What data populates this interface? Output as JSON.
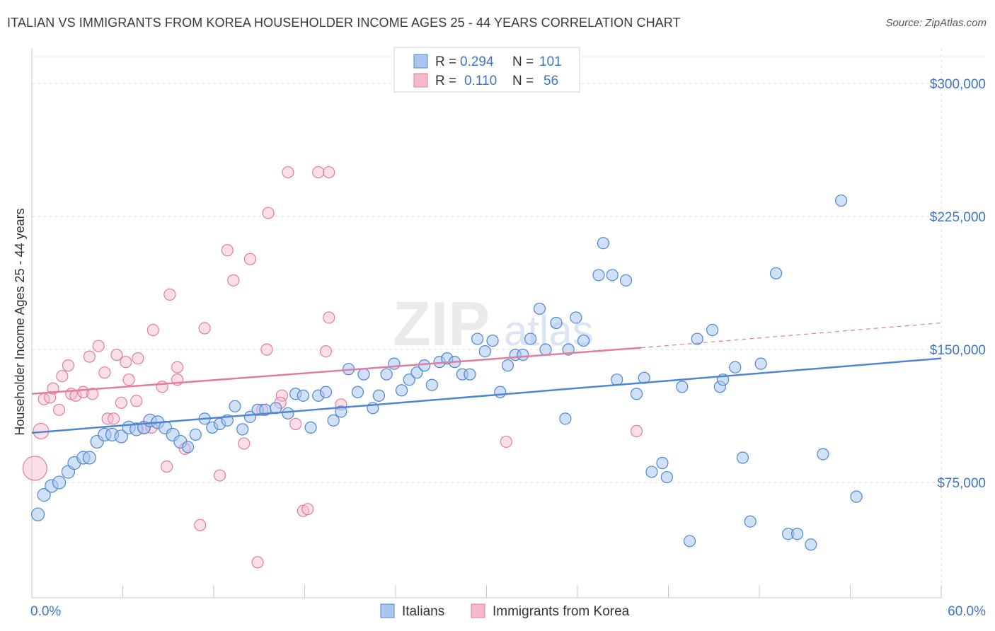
{
  "title": "ITALIAN VS IMMIGRANTS FROM KOREA HOUSEHOLDER INCOME AGES 25 - 44 YEARS CORRELATION CHART",
  "source": "Source: ZipAtlas.com",
  "watermark": {
    "zip": "ZIP",
    "atlas": "atlas"
  },
  "legend": [
    {
      "r_label": "R =",
      "r": "0.294",
      "n_label": "N =",
      "n": "101"
    },
    {
      "r_label": "R =",
      "r": "0.110",
      "n_label": "N =",
      "n": "56"
    }
  ],
  "colors": {
    "italians": "#4f86cf",
    "korea": "#e07da0"
  },
  "chart_data": {
    "type": "scatter",
    "title": "ITALIAN VS IMMIGRANTS FROM KOREA HOUSEHOLDER INCOME AGES 25 - 44 YEARS CORRELATION CHART",
    "xlabel": "",
    "ylabel": "Householder Income Ages 25 - 44 years",
    "xlim": [
      0,
      60
    ],
    "ylim": [
      10000,
      320000
    ],
    "x_tick_labels": {
      "left": "0.0%",
      "right": "60.0%"
    },
    "y_ticks": [
      {
        "value": 75000,
        "label": "$75,000"
      },
      {
        "value": 150000,
        "label": "$150,000"
      },
      {
        "value": 225000,
        "label": "$225,000"
      },
      {
        "value": 300000,
        "label": "$300,000"
      }
    ],
    "grid": true,
    "legend_position": "top-center",
    "series": [
      {
        "name": "Italians",
        "color": "#4f86cf",
        "trend": {
          "x0": 0,
          "y0": 103000,
          "x1": 60,
          "y1": 145000
        },
        "points": [
          [
            0.4,
            57000,
            9
          ],
          [
            0.8,
            68000,
            9
          ],
          [
            1.3,
            73000,
            9
          ],
          [
            1.8,
            75000,
            9
          ],
          [
            2.4,
            81000,
            9
          ],
          [
            2.8,
            86000,
            9
          ],
          [
            3.4,
            89000,
            9
          ],
          [
            3.8,
            89000,
            9
          ],
          [
            4.3,
            98000,
            9
          ],
          [
            4.8,
            102000,
            9
          ],
          [
            5.3,
            102000,
            9
          ],
          [
            5.9,
            101000,
            9
          ],
          [
            6.4,
            106000,
            9
          ],
          [
            6.9,
            105000,
            9
          ],
          [
            7.4,
            106000,
            9
          ],
          [
            7.8,
            110000,
            9
          ],
          [
            8.3,
            109000,
            9
          ],
          [
            8.8,
            106000,
            9
          ],
          [
            9.3,
            102000,
            9
          ],
          [
            9.8,
            98000,
            9
          ],
          [
            10.3,
            95000,
            8
          ],
          [
            10.8,
            102000,
            8
          ],
          [
            11.4,
            111000,
            8
          ],
          [
            11.9,
            106000,
            8
          ],
          [
            12.4,
            108000,
            8
          ],
          [
            12.9,
            110000,
            8
          ],
          [
            13.4,
            118000,
            8
          ],
          [
            13.9,
            105000,
            8
          ],
          [
            14.4,
            112000,
            8
          ],
          [
            14.9,
            116000,
            8
          ],
          [
            15.4,
            116000,
            8
          ],
          [
            16.1,
            117000,
            8
          ],
          [
            16.9,
            114000,
            8
          ],
          [
            17.4,
            125000,
            8
          ],
          [
            17.9,
            124000,
            8
          ],
          [
            18.4,
            106000,
            8
          ],
          [
            18.9,
            124000,
            8
          ],
          [
            19.4,
            126000,
            8
          ],
          [
            19.9,
            110000,
            8
          ],
          [
            20.4,
            115000,
            8
          ],
          [
            20.9,
            139000,
            8
          ],
          [
            21.5,
            126000,
            8
          ],
          [
            21.9,
            136000,
            8
          ],
          [
            22.5,
            117000,
            8
          ],
          [
            22.9,
            124000,
            8
          ],
          [
            23.4,
            136000,
            8
          ],
          [
            23.9,
            142000,
            8
          ],
          [
            24.4,
            127000,
            8
          ],
          [
            24.9,
            133000,
            8
          ],
          [
            25.4,
            137000,
            8
          ],
          [
            25.9,
            141000,
            8
          ],
          [
            26.4,
            130000,
            8
          ],
          [
            26.9,
            143000,
            8
          ],
          [
            27.4,
            145000,
            8
          ],
          [
            27.9,
            143000,
            8
          ],
          [
            28.4,
            136000,
            8
          ],
          [
            28.9,
            136000,
            8
          ],
          [
            29.4,
            156000,
            8
          ],
          [
            29.9,
            149000,
            8
          ],
          [
            30.4,
            155000,
            8
          ],
          [
            30.9,
            126000,
            8
          ],
          [
            31.4,
            141000,
            8
          ],
          [
            31.9,
            147000,
            8
          ],
          [
            32.4,
            147000,
            8
          ],
          [
            32.9,
            156000,
            8
          ],
          [
            33.5,
            173000,
            8
          ],
          [
            33.9,
            150000,
            8
          ],
          [
            34.6,
            165000,
            8
          ],
          [
            35.4,
            150000,
            8
          ],
          [
            35.9,
            168000,
            8
          ],
          [
            36.4,
            155000,
            8
          ],
          [
            35.2,
            111000,
            8
          ],
          [
            37.4,
            192000,
            8
          ],
          [
            37.7,
            210000,
            8
          ],
          [
            38.3,
            192000,
            8
          ],
          [
            38.6,
            133000,
            8
          ],
          [
            39.2,
            189000,
            8
          ],
          [
            39.9,
            125000,
            8
          ],
          [
            40.4,
            134000,
            8
          ],
          [
            40.9,
            81000,
            8
          ],
          [
            41.6,
            86000,
            8
          ],
          [
            41.9,
            78000,
            8
          ],
          [
            42.9,
            129000,
            8
          ],
          [
            43.4,
            42000,
            8
          ],
          [
            43.9,
            156000,
            8
          ],
          [
            44.9,
            161000,
            8
          ],
          [
            45.4,
            129000,
            8
          ],
          [
            45.6,
            133000,
            8
          ],
          [
            46.4,
            140000,
            8
          ],
          [
            46.9,
            89000,
            8
          ],
          [
            47.4,
            53000,
            8
          ],
          [
            48.1,
            142000,
            8
          ],
          [
            49.1,
            193000,
            8
          ],
          [
            49.9,
            46000,
            8
          ],
          [
            50.5,
            46000,
            8
          ],
          [
            51.4,
            40000,
            8
          ],
          [
            52.2,
            91000,
            8
          ],
          [
            53.4,
            234000,
            8
          ],
          [
            54.4,
            67000,
            8
          ]
        ]
      },
      {
        "name": "Immigrants from Korea",
        "color": "#e07da0",
        "trend": {
          "x0": 0,
          "y0": 125000,
          "x1": 40.2,
          "y1": 151000,
          "dashed_to": {
            "x": 60,
            "y": 165000
          }
        },
        "points": [
          [
            0.2,
            83000,
            17
          ],
          [
            0.6,
            104000,
            11
          ],
          [
            0.8,
            122000,
            8
          ],
          [
            1.2,
            123000,
            8
          ],
          [
            1.4,
            128000,
            8
          ],
          [
            1.8,
            116000,
            8
          ],
          [
            2.0,
            135000,
            8
          ],
          [
            2.4,
            141000,
            8
          ],
          [
            2.6,
            125000,
            8
          ],
          [
            2.9,
            124000,
            8
          ],
          [
            3.4,
            126000,
            8
          ],
          [
            3.8,
            146000,
            8
          ],
          [
            4.0,
            125000,
            8
          ],
          [
            4.4,
            152000,
            8
          ],
          [
            4.8,
            137000,
            8
          ],
          [
            5.0,
            111000,
            8
          ],
          [
            5.4,
            111000,
            8
          ],
          [
            5.6,
            147000,
            8
          ],
          [
            5.9,
            120000,
            8
          ],
          [
            6.2,
            143000,
            8
          ],
          [
            6.4,
            133000,
            8
          ],
          [
            6.9,
            121000,
            8
          ],
          [
            7.0,
            145000,
            8
          ],
          [
            7.4,
            106000,
            8
          ],
          [
            7.9,
            106000,
            8
          ],
          [
            8.0,
            161000,
            8
          ],
          [
            8.6,
            129000,
            8
          ],
          [
            8.9,
            84000,
            8
          ],
          [
            9.1,
            181000,
            8
          ],
          [
            9.6,
            140000,
            8
          ],
          [
            9.6,
            133000,
            8
          ],
          [
            10.1,
            94000,
            8
          ],
          [
            11.1,
            51000,
            8
          ],
          [
            11.4,
            162000,
            8
          ],
          [
            12.4,
            79000,
            8
          ],
          [
            12.9,
            206000,
            8
          ],
          [
            13.3,
            189000,
            8
          ],
          [
            14.0,
            97000,
            8
          ],
          [
            14.4,
            201000,
            8
          ],
          [
            14.9,
            30000,
            8
          ],
          [
            15.2,
            116000,
            8
          ],
          [
            15.5,
            150000,
            8
          ],
          [
            15.6,
            227000,
            8
          ],
          [
            16.5,
            124000,
            8
          ],
          [
            16.4,
            120000,
            8
          ],
          [
            16.9,
            250000,
            8
          ],
          [
            17.4,
            108000,
            8
          ],
          [
            17.9,
            59000,
            8
          ],
          [
            18.2,
            60000,
            8
          ],
          [
            18.9,
            250000,
            8
          ],
          [
            19.4,
            149000,
            8
          ],
          [
            19.6,
            168000,
            8
          ],
          [
            19.6,
            250000,
            8
          ],
          [
            20.4,
            119000,
            8
          ],
          [
            31.3,
            98000,
            8
          ],
          [
            39.9,
            104000,
            8
          ]
        ]
      }
    ]
  },
  "bottom_legend": [
    "Italians",
    "Immigrants from Korea"
  ]
}
